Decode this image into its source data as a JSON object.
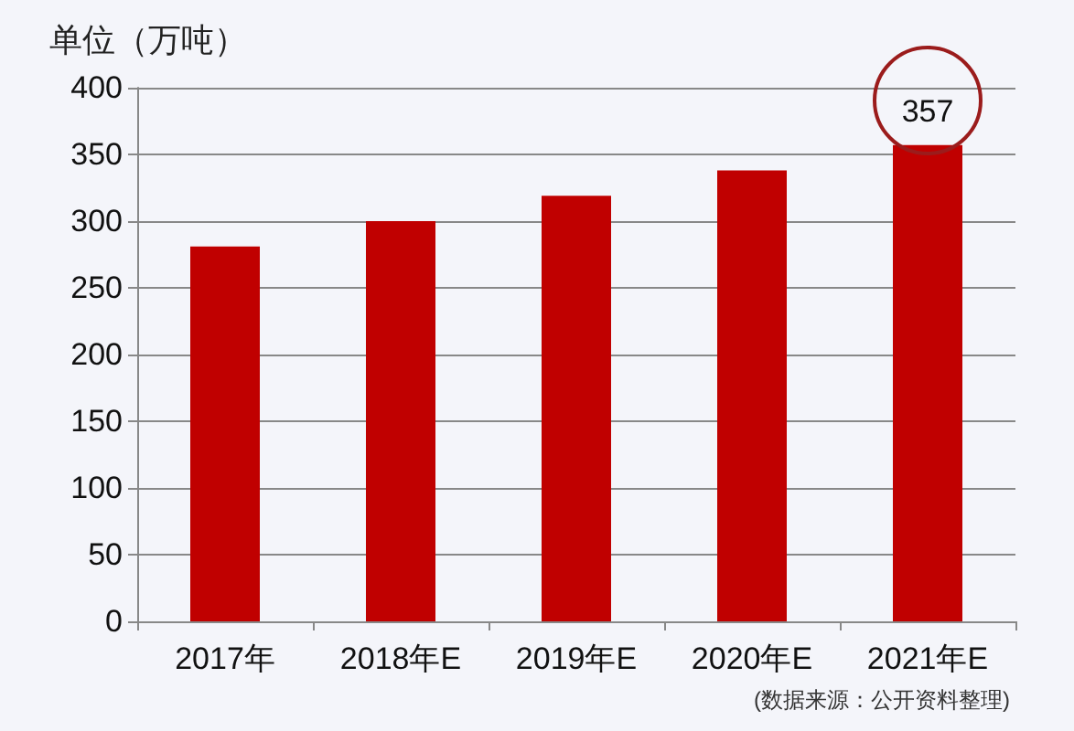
{
  "chart_data": {
    "type": "bar",
    "ylabel": "单位（万吨）",
    "categories": [
      "2017年",
      "2018年E",
      "2019年E",
      "2020年E",
      "2021年E"
    ],
    "values": [
      281,
      300,
      319,
      338,
      357
    ],
    "value_labels": [
      null,
      null,
      null,
      null,
      "357"
    ],
    "color": "#c00000",
    "ylim": [
      0,
      400
    ],
    "yticks": [
      0,
      50,
      100,
      150,
      200,
      250,
      300,
      350,
      400
    ],
    "grid": "y",
    "annotations": [
      "(数据来源：公开资料整理)"
    ]
  }
}
